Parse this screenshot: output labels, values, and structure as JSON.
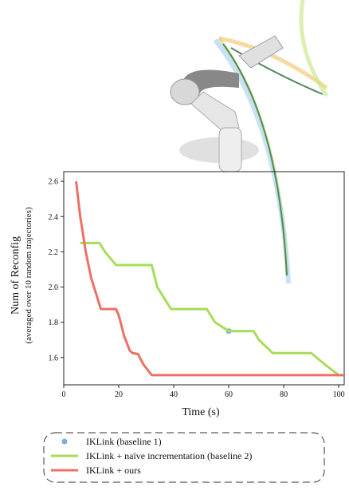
{
  "chart_data": {
    "type": "line",
    "y_label": "Num of Reconfig",
    "y_sublabel": "(averaged over 10 random trajectories)",
    "x_label": "Time (s)",
    "xlim": [
      0,
      102
    ],
    "ylim": [
      1.445,
      2.655
    ],
    "xticks": [
      0,
      20,
      40,
      60,
      80,
      100
    ],
    "yticks": [
      1.6,
      1.8,
      {
        "value": 2,
        "label": "2.0"
      },
      2.2,
      2.4,
      2.6
    ],
    "series": [
      {
        "name": "IKLink (baseline 1)",
        "color": "#7aaee0",
        "marker": true,
        "x": [
          60
        ],
        "values": [
          1.75
        ]
      },
      {
        "name": "IKLink + naïve incrementation (baseline 2)",
        "color": "#a8dc5a",
        "x": [
          6,
          13,
          15,
          19,
          32,
          34,
          39,
          52,
          55,
          60,
          69,
          71,
          76,
          90,
          95,
          100,
          102
        ],
        "values": [
          2.25,
          2.25,
          2.2,
          2.125,
          2.125,
          2.0,
          1.875,
          1.875,
          1.8,
          1.75,
          1.75,
          1.7,
          1.625,
          1.625,
          1.56,
          1.5,
          1.5
        ]
      },
      {
        "name": "IKLink + ours",
        "color": "#ee6f66",
        "x": [
          4.5,
          6,
          8,
          10,
          12,
          13.5,
          19,
          20,
          22,
          24,
          25,
          27,
          29,
          32,
          102
        ],
        "values": [
          2.6,
          2.4,
          2.2,
          2.05,
          1.95,
          1.875,
          1.875,
          1.84,
          1.72,
          1.64,
          1.625,
          1.62,
          1.56,
          1.5,
          1.5
        ]
      }
    ]
  }
}
